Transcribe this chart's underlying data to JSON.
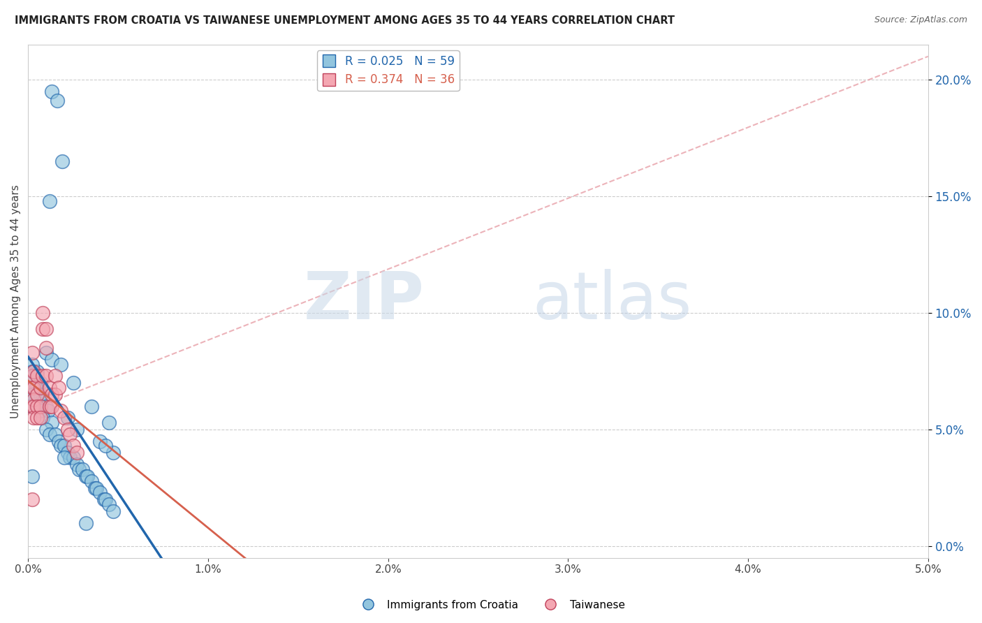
{
  "title": "IMMIGRANTS FROM CROATIA VS TAIWANESE UNEMPLOYMENT AMONG AGES 35 TO 44 YEARS CORRELATION CHART",
  "source": "Source: ZipAtlas.com",
  "ylabel": "Unemployment Among Ages 35 to 44 years",
  "xlim": [
    0.0,
    0.05
  ],
  "ylim": [
    -0.005,
    0.215
  ],
  "xticks": [
    0.0,
    0.01,
    0.02,
    0.03,
    0.04,
    0.05
  ],
  "yticks": [
    0.0,
    0.05,
    0.1,
    0.15,
    0.2
  ],
  "blue_color": "#92c5de",
  "pink_color": "#f4a7b2",
  "blue_line_color": "#2166ac",
  "pink_line_color": "#d6604d",
  "legend_r1": "R = 0.025",
  "legend_n1": "N = 59",
  "legend_r2": "R = 0.374",
  "legend_n2": "N = 36",
  "legend_label1": "Immigrants from Croatia",
  "legend_label2": "Taiwanese",
  "blue_scatter_x": [
    0.0013,
    0.0016,
    0.0019,
    0.0012,
    0.0003,
    0.0005,
    0.0007,
    0.0005,
    0.0004,
    0.0002,
    0.0002,
    0.0003,
    0.0004,
    0.0003,
    0.0007,
    0.0008,
    0.001,
    0.0007,
    0.0011,
    0.0008,
    0.0013,
    0.001,
    0.0012,
    0.0015,
    0.0017,
    0.0018,
    0.002,
    0.0022,
    0.0023,
    0.0025,
    0.0027,
    0.0028,
    0.003,
    0.0032,
    0.0033,
    0.0035,
    0.0037,
    0.0038,
    0.004,
    0.0042,
    0.0043,
    0.0045,
    0.0047,
    0.001,
    0.0013,
    0.0018,
    0.0025,
    0.0035,
    0.0045,
    0.004,
    0.0047,
    0.0002,
    0.0002,
    0.0022,
    0.0027,
    0.0043,
    0.002,
    0.0002,
    0.0032
  ],
  "blue_scatter_y": [
    0.195,
    0.191,
    0.165,
    0.148,
    0.075,
    0.075,
    0.07,
    0.068,
    0.063,
    0.078,
    0.075,
    0.073,
    0.068,
    0.065,
    0.065,
    0.063,
    0.06,
    0.058,
    0.058,
    0.055,
    0.053,
    0.05,
    0.048,
    0.048,
    0.045,
    0.043,
    0.043,
    0.04,
    0.038,
    0.038,
    0.035,
    0.033,
    0.033,
    0.03,
    0.03,
    0.028,
    0.025,
    0.025,
    0.023,
    0.02,
    0.02,
    0.018,
    0.015,
    0.083,
    0.08,
    0.078,
    0.07,
    0.06,
    0.053,
    0.045,
    0.04,
    0.065,
    0.06,
    0.055,
    0.05,
    0.043,
    0.038,
    0.03,
    0.01
  ],
  "pink_scatter_x": [
    0.0002,
    0.0002,
    0.0002,
    0.0002,
    0.0002,
    0.0003,
    0.0003,
    0.0003,
    0.0003,
    0.0003,
    0.0005,
    0.0005,
    0.0005,
    0.0005,
    0.0007,
    0.0007,
    0.0007,
    0.0008,
    0.0008,
    0.0008,
    0.001,
    0.001,
    0.001,
    0.0012,
    0.0012,
    0.0013,
    0.0013,
    0.0015,
    0.0015,
    0.0017,
    0.0018,
    0.002,
    0.0022,
    0.0023,
    0.0025,
    0.0027
  ],
  "pink_scatter_y": [
    0.083,
    0.073,
    0.068,
    0.06,
    0.02,
    0.075,
    0.068,
    0.063,
    0.06,
    0.055,
    0.073,
    0.065,
    0.06,
    0.055,
    0.068,
    0.06,
    0.055,
    0.1,
    0.093,
    0.073,
    0.093,
    0.085,
    0.073,
    0.068,
    0.06,
    0.065,
    0.06,
    0.073,
    0.065,
    0.068,
    0.058,
    0.055,
    0.05,
    0.048,
    0.043,
    0.04
  ],
  "watermark_zip": "ZIP",
  "watermark_atlas": "atlas",
  "background_color": "#ffffff",
  "grid_color": "#cccccc"
}
